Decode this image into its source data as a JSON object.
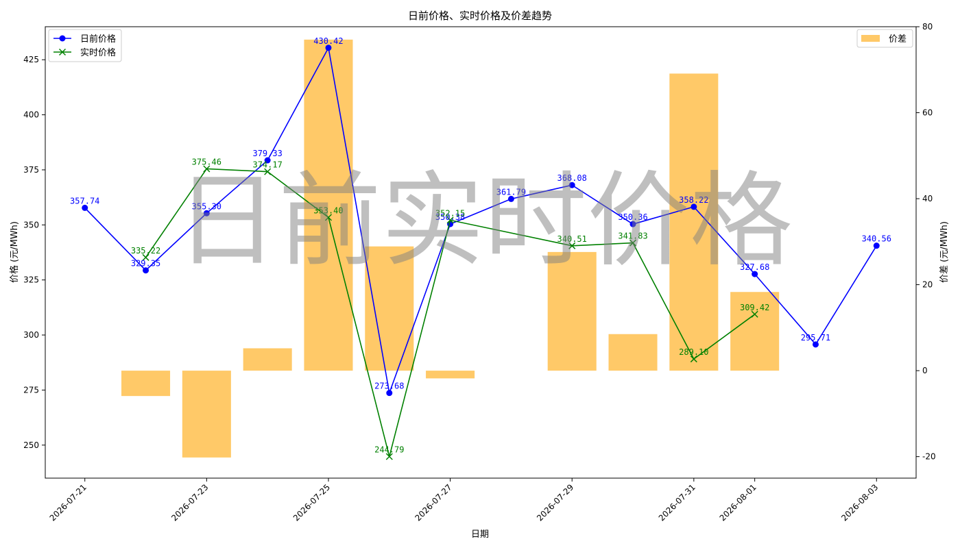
{
  "chart_data": {
    "type": "line",
    "title": "日前价格、实时价格及价差趋势",
    "xlabel": "日期",
    "ylabel": "价格 (元/MWh)",
    "y2label": "价差 (元/MWh)",
    "watermark": "日前实时价格",
    "ylim": [
      235,
      440
    ],
    "y2lim": [
      -25,
      80
    ],
    "grid": false,
    "x_ticks": [
      "2026-07-21",
      "2026-07-23",
      "2026-07-25",
      "2026-07-27",
      "2026-07-29",
      "2026-07-31",
      "2026-08-01",
      "2026-08-03"
    ],
    "y_ticks": [
      250,
      275,
      300,
      325,
      350,
      375,
      400,
      425
    ],
    "y2_ticks": [
      -20,
      0,
      20,
      40,
      60,
      80
    ],
    "series": [
      {
        "name": "日前价格",
        "kind": "line",
        "axis": "left",
        "marker": "circle",
        "color": "#0000ff",
        "points": [
          {
            "x": "2026-07-21",
            "y": 357.74,
            "label": "357.74"
          },
          {
            "x": "2026-07-22",
            "y": 329.35,
            "label": "329.35"
          },
          {
            "x": "2026-07-23",
            "y": 355.3,
            "label": "355.30"
          },
          {
            "x": "2026-07-24",
            "y": 379.33,
            "label": "379.33"
          },
          {
            "x": "2026-07-25",
            "y": 430.42,
            "label": "430.42"
          },
          {
            "x": "2026-07-26",
            "y": 273.68,
            "label": "273.68"
          },
          {
            "x": "2026-07-27",
            "y": 350.38,
            "label": "350.38"
          },
          {
            "x": "2026-07-28",
            "y": 361.79,
            "label": "361.79"
          },
          {
            "x": "2026-07-29",
            "y": 368.08,
            "label": "368.08"
          },
          {
            "x": "2026-07-30",
            "y": 350.36,
            "label": "350.36"
          },
          {
            "x": "2026-07-31",
            "y": 358.22,
            "label": "358.22"
          },
          {
            "x": "2026-08-01",
            "y": 327.68,
            "label": "327.68"
          },
          {
            "x": "2026-08-02",
            "y": 295.71,
            "label": "295.71"
          },
          {
            "x": "2026-08-03",
            "y": 340.56,
            "label": "340.56"
          }
        ]
      },
      {
        "name": "实时价格",
        "kind": "line",
        "axis": "left",
        "marker": "x",
        "color": "#008000",
        "points": [
          {
            "x": "2026-07-22",
            "y": 335.22,
            "label": "335.22"
          },
          {
            "x": "2026-07-23",
            "y": 375.46,
            "label": "375.46"
          },
          {
            "x": "2026-07-24",
            "y": 374.17,
            "label": "374.17"
          },
          {
            "x": "2026-07-25",
            "y": 353.4,
            "label": "353.40"
          },
          {
            "x": "2026-07-26",
            "y": 244.79,
            "label": "244.79"
          },
          {
            "x": "2026-07-27",
            "y": 352.15,
            "label": "352.15"
          },
          {
            "x": "2026-07-29",
            "y": 340.51,
            "label": "340.51"
          },
          {
            "x": "2026-07-30",
            "y": 341.83,
            "label": "341.83"
          },
          {
            "x": "2026-07-31",
            "y": 289.1,
            "label": "289.10"
          },
          {
            "x": "2026-08-01",
            "y": 309.42,
            "label": "309.42"
          }
        ]
      },
      {
        "name": "价差",
        "kind": "bar",
        "axis": "right",
        "color": "#ffc04d",
        "points": [
          {
            "x": "2026-07-22",
            "y": -5.9
          },
          {
            "x": "2026-07-23",
            "y": -20.2
          },
          {
            "x": "2026-07-24",
            "y": 5.2
          },
          {
            "x": "2026-07-25",
            "y": 77.0
          },
          {
            "x": "2026-07-26",
            "y": 28.9
          },
          {
            "x": "2026-07-27",
            "y": -1.8
          },
          {
            "x": "2026-07-29",
            "y": 27.6
          },
          {
            "x": "2026-07-30",
            "y": 8.5
          },
          {
            "x": "2026-07-31",
            "y": 69.1
          },
          {
            "x": "2026-08-01",
            "y": 18.3
          }
        ]
      }
    ],
    "legend_left": {
      "placement": "top-left",
      "items": [
        "日前价格",
        "实时价格"
      ]
    },
    "legend_right": {
      "placement": "top-right",
      "items": [
        "价差"
      ]
    }
  }
}
